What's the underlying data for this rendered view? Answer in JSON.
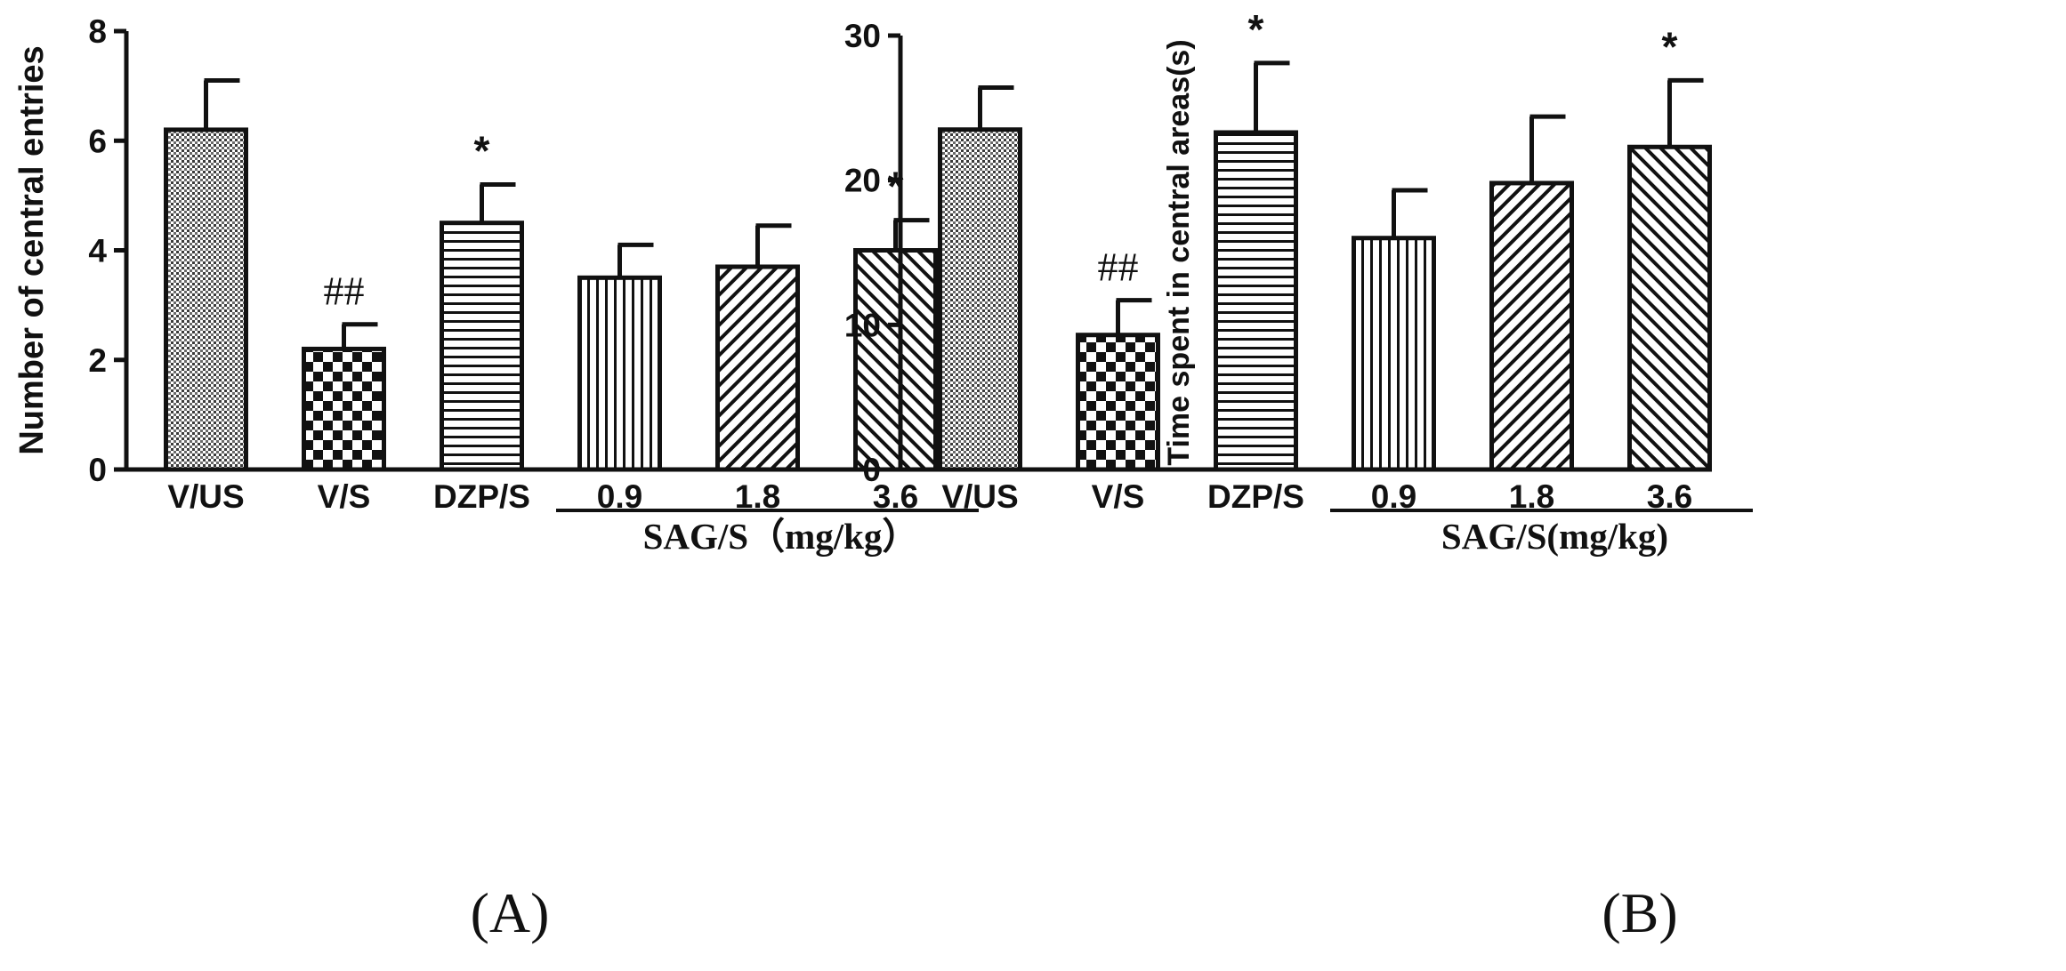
{
  "chart_data": [
    {
      "type": "bar",
      "panel_label": "(A)",
      "ylabel": "Number of central entries",
      "ylim": [
        0,
        8
      ],
      "yticks": [
        "0",
        "2",
        "4",
        "6",
        "8"
      ],
      "categories": [
        "V/US",
        "V/S",
        "DZP/S",
        "0.9",
        "1.8",
        "3.6"
      ],
      "values": [
        6.2,
        2.2,
        4.5,
        3.5,
        3.7,
        4.0
      ],
      "errors": [
        0.9,
        0.45,
        0.7,
        0.6,
        0.75,
        0.55
      ],
      "annotations": [
        "",
        "##",
        "*",
        "",
        "",
        "*"
      ],
      "group": {
        "label": "SAG/S（mg/kg）",
        "categories": [
          "0.9",
          "1.8",
          "3.6"
        ]
      },
      "patterns": [
        "fine-dots",
        "checker",
        "horizontal-lines",
        "vertical-lines",
        "diagonal-up",
        "diagonal-down"
      ]
    },
    {
      "type": "bar",
      "panel_label": "(B)",
      "ylabel": "Time spent in central areas(s)",
      "ylim": [
        0,
        30
      ],
      "yticks": [
        "0",
        "10",
        "20",
        "30"
      ],
      "categories": [
        "V/US",
        "V/S",
        "DZP/S",
        "0.9",
        "1.8",
        "3.6"
      ],
      "values": [
        23.5,
        9.3,
        23.3,
        16.0,
        19.8,
        22.3
      ],
      "errors": [
        2.9,
        2.4,
        4.8,
        3.3,
        4.6,
        4.6
      ],
      "annotations": [
        "",
        "##",
        "*",
        "",
        "",
        "*"
      ],
      "group": {
        "label": "SAG/S(mg/kg)",
        "categories": [
          "0.9",
          "1.8",
          "3.6"
        ]
      },
      "patterns": [
        "fine-dots",
        "checker",
        "horizontal-lines",
        "vertical-lines",
        "diagonal-up",
        "diagonal-down"
      ]
    }
  ]
}
